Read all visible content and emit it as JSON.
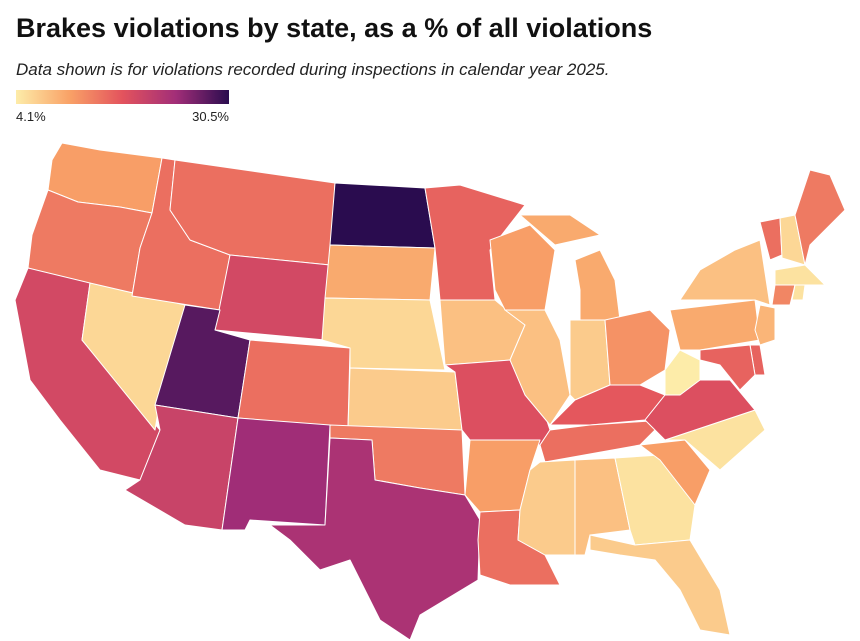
{
  "chart_data": {
    "type": "choropleth",
    "title": "Brakes violations by state, as a % of all violations",
    "subtitle": "Data shown is for violations recorded during inspections in calendar year 2025.",
    "values": [
      11,
      14,
      19,
      6,
      15,
      15,
      19,
      28,
      15,
      20,
      24,
      30.5,
      10,
      6,
      7,
      14,
      23,
      16,
      8,
      18,
      11,
      15,
      11,
      8,
      10,
      7,
      12,
      17,
      15,
      7,
      8,
      5,
      7,
      11,
      5,
      18,
      4.1,
      10,
      8,
      15,
      6,
      14,
      5,
      13,
      5,
      9,
      16,
      16
    ],
    "colorlim": [
      4.1,
      30.5
    ],
    "colorticks": [
      {
        "value": 4.1,
        "label": "4.1%"
      },
      {
        "value": 30.5,
        "label": "30.5%"
      }
    ],
    "colors": [
      "#fdeca9",
      "#f9a267",
      "#e3535d",
      "#a22e78",
      "#2a0c4f"
    ]
  }
}
